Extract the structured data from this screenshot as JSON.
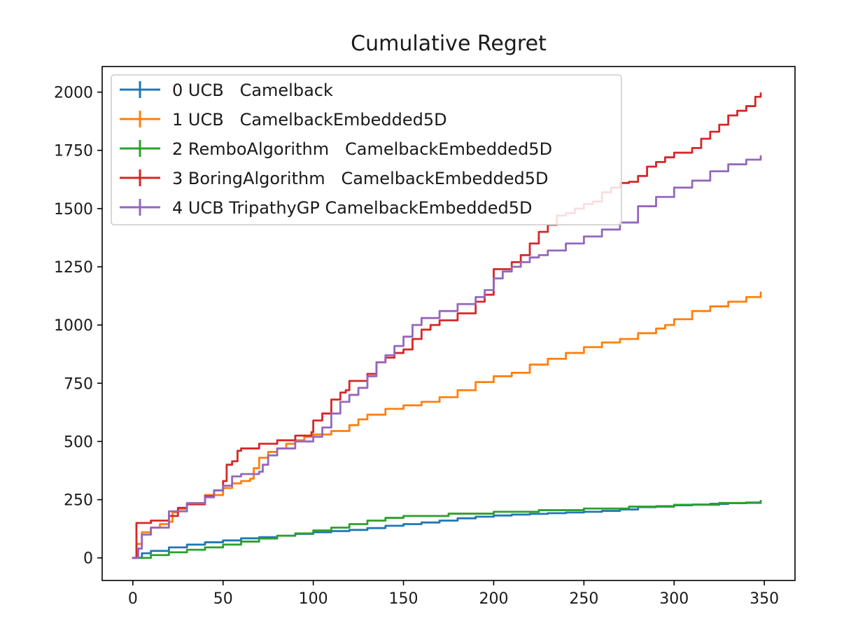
{
  "chart_data": {
    "type": "line",
    "title": "Cumulative Regret",
    "xlabel": "",
    "ylabel": "",
    "xlim": [
      -17,
      367
    ],
    "ylim": [
      -97,
      2110
    ],
    "xticks": [
      0,
      50,
      100,
      150,
      200,
      250,
      300,
      350
    ],
    "yticks": [
      0,
      250,
      500,
      750,
      1000,
      1250,
      1500,
      1750,
      2000
    ],
    "grid": false,
    "legend": "top-left",
    "series": [
      {
        "name": "0 UCB   Camelback",
        "color": "#1f77b4",
        "x": [
          0,
          5,
          10,
          20,
          30,
          40,
          50,
          60,
          70,
          80,
          90,
          100,
          110,
          120,
          130,
          140,
          150,
          160,
          170,
          180,
          190,
          200,
          210,
          220,
          230,
          240,
          250,
          260,
          270,
          280,
          290,
          300,
          310,
          320,
          330,
          340,
          348
        ],
        "y": [
          0,
          20,
          30,
          45,
          57,
          67,
          75,
          84,
          89,
          95,
          103,
          110,
          115,
          120,
          128,
          138,
          145,
          152,
          160,
          170,
          177,
          182,
          186,
          189,
          192,
          195,
          198,
          202,
          208,
          218,
          222,
          226,
          229,
          232,
          235,
          238,
          241
        ]
      },
      {
        "name": "1 UCB   CamelbackEmbedded5D",
        "color": "#ff7f0e",
        "x": [
          0,
          2,
          5,
          10,
          15,
          20,
          22,
          25,
          30,
          40,
          50,
          55,
          60,
          65,
          67,
          70,
          75,
          80,
          85,
          90,
          95,
          100,
          110,
          120,
          125,
          130,
          140,
          150,
          160,
          170,
          180,
          190,
          200,
          210,
          220,
          230,
          240,
          250,
          260,
          270,
          280,
          290,
          295,
          300,
          310,
          320,
          330,
          340,
          348
        ],
        "y": [
          0,
          60,
          110,
          130,
          145,
          155,
          195,
          210,
          235,
          270,
          300,
          320,
          330,
          340,
          385,
          430,
          455,
          470,
          490,
          505,
          520,
          530,
          545,
          570,
          595,
          615,
          640,
          655,
          670,
          690,
          720,
          755,
          780,
          795,
          830,
          855,
          880,
          905,
          925,
          940,
          965,
          985,
          1000,
          1025,
          1060,
          1080,
          1100,
          1120,
          1140
        ]
      },
      {
        "name": "2 RemboAlgorithm   CamelbackEmbedded5D",
        "color": "#2ca02c",
        "x": [
          0,
          10,
          20,
          30,
          40,
          50,
          60,
          70,
          80,
          90,
          100,
          110,
          120,
          130,
          140,
          150,
          175,
          200,
          225,
          250,
          275,
          300,
          325,
          348
        ],
        "y": [
          0,
          12,
          24,
          35,
          45,
          57,
          70,
          83,
          95,
          105,
          118,
          130,
          145,
          160,
          172,
          180,
          190,
          198,
          205,
          212,
          220,
          228,
          236,
          245
        ]
      },
      {
        "name": "3 BoringAlgorithm   CamelbackEmbedded5D",
        "color": "#d62728",
        "x": [
          0,
          2,
          10,
          20,
          25,
          30,
          40,
          45,
          50,
          52,
          55,
          58,
          60,
          70,
          80,
          90,
          99,
          100,
          105,
          110,
          115,
          118,
          120,
          130,
          135,
          140,
          145,
          150,
          155,
          160,
          165,
          170,
          180,
          190,
          195,
          200,
          210,
          215,
          220,
          225,
          230,
          235,
          240,
          245,
          250,
          255,
          260,
          265,
          270,
          275,
          280,
          285,
          290,
          295,
          300,
          310,
          315,
          320,
          325,
          330,
          335,
          340,
          345,
          348
        ],
        "y": [
          0,
          150,
          160,
          180,
          215,
          230,
          265,
          290,
          330,
          400,
          415,
          460,
          470,
          490,
          505,
          525,
          540,
          590,
          620,
          680,
          710,
          720,
          760,
          790,
          840,
          860,
          880,
          895,
          940,
          980,
          1000,
          1020,
          1050,
          1100,
          1130,
          1240,
          1270,
          1300,
          1350,
          1400,
          1430,
          1470,
          1480,
          1500,
          1520,
          1530,
          1570,
          1590,
          1610,
          1615,
          1640,
          1680,
          1700,
          1720,
          1740,
          1760,
          1800,
          1830,
          1860,
          1900,
          1920,
          1940,
          1980,
          1995
        ]
      },
      {
        "name": "4 UCB TripathyGP CamelbackEmbedded5D",
        "color": "#9467bd",
        "x": [
          0,
          3,
          5,
          10,
          20,
          30,
          40,
          45,
          50,
          55,
          60,
          70,
          72,
          75,
          80,
          90,
          100,
          105,
          110,
          115,
          120,
          125,
          130,
          135,
          140,
          145,
          150,
          155,
          160,
          170,
          180,
          190,
          195,
          200,
          205,
          210,
          215,
          220,
          225,
          230,
          240,
          250,
          260,
          270,
          280,
          290,
          300,
          310,
          320,
          330,
          340,
          348
        ],
        "y": [
          0,
          40,
          100,
          130,
          200,
          235,
          260,
          290,
          310,
          350,
          360,
          370,
          400,
          440,
          470,
          500,
          520,
          560,
          620,
          670,
          700,
          730,
          780,
          840,
          870,
          910,
          950,
          1000,
          1030,
          1060,
          1090,
          1120,
          1150,
          1200,
          1230,
          1250,
          1270,
          1290,
          1300,
          1320,
          1350,
          1380,
          1410,
          1440,
          1510,
          1550,
          1590,
          1620,
          1660,
          1690,
          1710,
          1725
        ]
      }
    ]
  }
}
